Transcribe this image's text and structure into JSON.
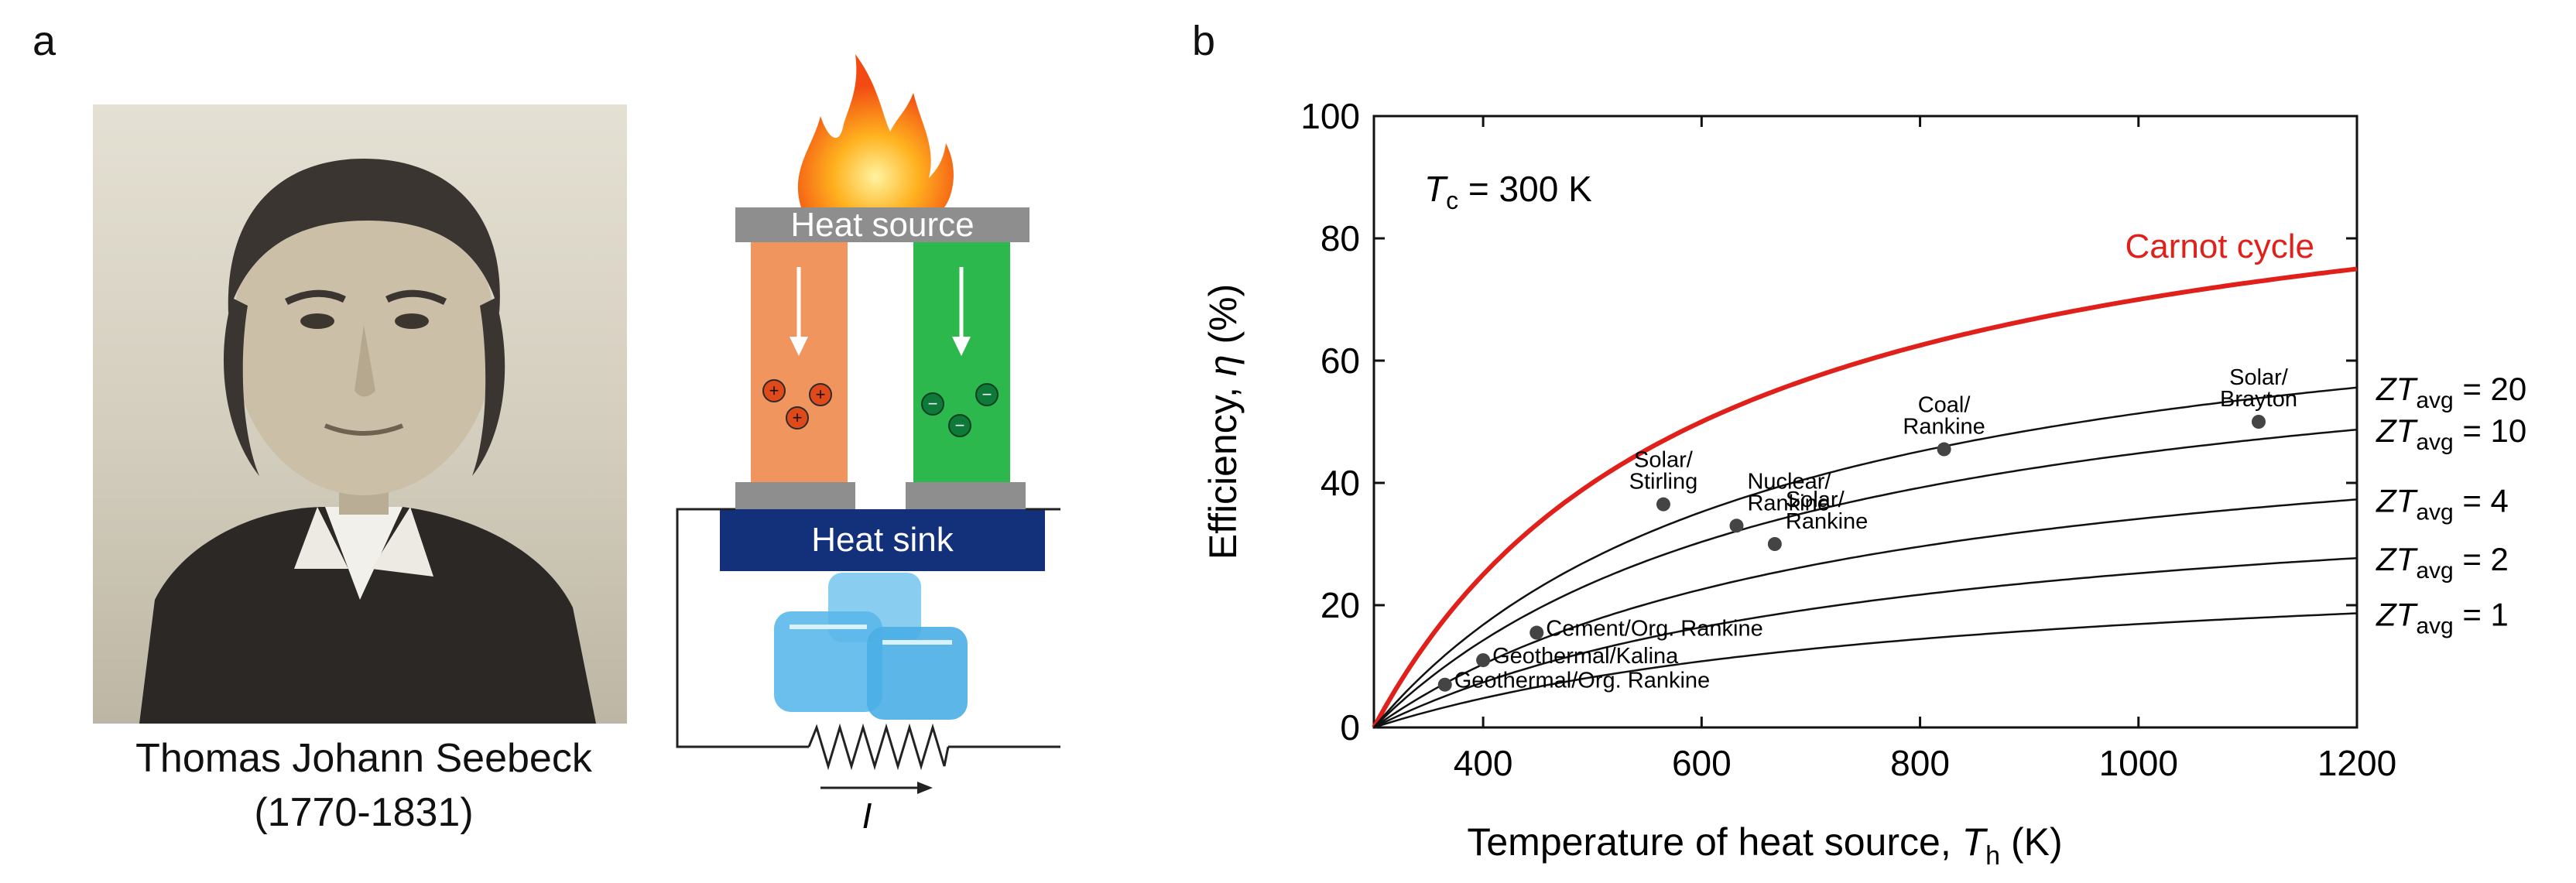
{
  "figure": {
    "panel_a_label": "a",
    "panel_b_label": "b",
    "portrait": {
      "name": "Thomas Johann Seebeck",
      "years": "(1770-1831)"
    },
    "device": {
      "top_label": "Heat source",
      "bottom_label": "Heat sink",
      "current_symbol": "I",
      "n_leg_color": "#f0955e",
      "p_leg_color": "#2db84e",
      "heat_sink_color": "#13307a",
      "plate_color": "#8e8e8e"
    }
  },
  "chart_data": {
    "type": "line",
    "xlabel_main": "Temperature of heat source, ",
    "xlabel_symbol": "T",
    "xlabel_sub": "h",
    "xlabel_unit": " (K)",
    "ylabel_main": "Efficiency, ",
    "ylabel_symbol": "η",
    "ylabel_unit": " (%)",
    "annotation_symbol": "T",
    "annotation_sub": "c",
    "annotation_value": " = 300 K",
    "xlim": [
      300,
      1200
    ],
    "ylim": [
      0,
      100
    ],
    "x_ticks": [
      400,
      600,
      800,
      1000,
      1200
    ],
    "y_ticks": [
      0,
      20,
      40,
      60,
      80,
      100
    ],
    "carnot": {
      "name": "Carnot cycle",
      "color": "#e0201b",
      "formula": "eta = 100 * (1 - Tc/Th)"
    },
    "zt_curves": [
      {
        "zt": 20,
        "label_prefix": "ZT",
        "label_sub": "avg",
        "label_value": " = 20"
      },
      {
        "zt": 10,
        "label_prefix": "ZT",
        "label_sub": "avg",
        "label_value": " = 10"
      },
      {
        "zt": 4,
        "label_prefix": "ZT",
        "label_sub": "avg",
        "label_value": " = 4"
      },
      {
        "zt": 2,
        "label_prefix": "ZT",
        "label_sub": "avg",
        "label_value": " = 2"
      },
      {
        "zt": 1,
        "label_prefix": "ZT",
        "label_sub": "avg",
        "label_value": " = 1"
      }
    ],
    "points": [
      {
        "lines": [
          "Solar/",
          "Stirling"
        ],
        "x": 565,
        "y": 36.5,
        "align": "middle"
      },
      {
        "lines": [
          "Nuclear/",
          "Rankine"
        ],
        "x": 632,
        "y": 33.0,
        "align": "start"
      },
      {
        "lines": [
          "Solar/",
          "Rankine"
        ],
        "x": 667,
        "y": 30.0,
        "align": "start"
      },
      {
        "lines": [
          "Coal/",
          "Rankine"
        ],
        "x": 822,
        "y": 45.5,
        "align": "middle"
      },
      {
        "lines": [
          "Solar/",
          "Brayton"
        ],
        "x": 1110,
        "y": 50.0,
        "align": "middle"
      },
      {
        "lines": [
          "Cement/Org. Rankine"
        ],
        "x": 449,
        "y": 15.5,
        "align": "start"
      },
      {
        "lines": [
          "Geothermal/Kalina"
        ],
        "x": 400,
        "y": 11.0,
        "align": "start"
      },
      {
        "lines": [
          "Geothermal/Org. Rankine"
        ],
        "x": 365,
        "y": 7.0,
        "align": "start"
      }
    ]
  }
}
